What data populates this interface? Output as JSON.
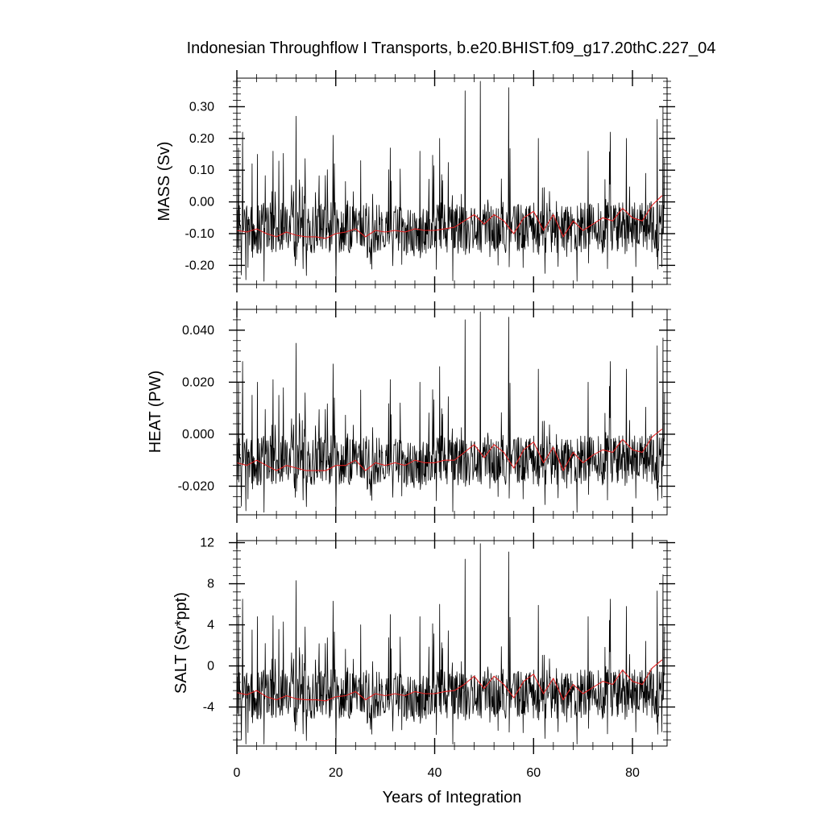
{
  "title": "Indonesian Throughflow I Transports, b.e20.BHIST.f09_g17.20thC.227_04",
  "xlabel": "Years of Integration",
  "colors": {
    "raw": "#000000",
    "smoothed": "#e02020",
    "frame": "#000000"
  },
  "chart_data": [
    {
      "type": "line",
      "ylabel": "MASS (Sv)",
      "xlim": [
        0,
        87
      ],
      "ylim": [
        -0.26,
        0.39
      ],
      "x_ticks": [],
      "y_ticks": [
        "-0.20",
        "-0.10",
        "0.00",
        "0.10",
        "0.20",
        "0.30"
      ],
      "y_tick_values": [
        -0.2,
        -0.1,
        0.0,
        0.1,
        0.2,
        0.3
      ],
      "series": [
        {
          "role": "raw",
          "base": -0.09,
          "spread": 0.08,
          "lo": -0.25,
          "hi": 0.38,
          "peaks": [
            [
              0.3,
              0.17
            ],
            [
              1.2,
              0.22
            ],
            [
              3.1,
              0.12
            ],
            [
              4.2,
              0.15
            ],
            [
              7.3,
              0.16
            ],
            [
              12.0,
              0.27
            ],
            [
              19.5,
              0.21
            ],
            [
              25.0,
              0.13
            ],
            [
              31.0,
              0.17
            ],
            [
              37.0,
              0.16
            ],
            [
              41.0,
              0.2
            ],
            [
              46.2,
              0.35
            ],
            [
              49.2,
              0.38
            ],
            [
              55.0,
              0.36
            ],
            [
              61.0,
              0.2
            ],
            [
              71.0,
              0.16
            ],
            [
              75.5,
              0.22
            ],
            [
              78.8,
              0.2
            ],
            [
              85.0,
              0.26
            ],
            [
              86.2,
              0.3
            ]
          ]
        },
        {
          "role": "smoothed",
          "x": [
            0,
            2,
            4,
            6,
            8,
            10,
            12,
            14,
            16,
            18,
            20,
            22,
            24,
            26,
            28,
            30,
            32,
            34,
            36,
            38,
            40,
            42,
            44,
            46,
            48,
            50,
            52,
            54,
            56,
            58,
            60,
            62,
            64,
            66,
            68,
            70,
            72,
            74,
            76,
            78,
            80,
            82,
            84,
            86
          ],
          "y": [
            -0.09,
            -0.095,
            -0.085,
            -0.1,
            -0.11,
            -0.095,
            -0.105,
            -0.11,
            -0.11,
            -0.115,
            -0.1,
            -0.095,
            -0.085,
            -0.11,
            -0.09,
            -0.095,
            -0.09,
            -0.095,
            -0.085,
            -0.09,
            -0.09,
            -0.085,
            -0.08,
            -0.06,
            -0.04,
            -0.07,
            -0.04,
            -0.06,
            -0.1,
            -0.05,
            -0.03,
            -0.09,
            -0.04,
            -0.11,
            -0.06,
            -0.09,
            -0.07,
            -0.05,
            -0.06,
            -0.02,
            -0.05,
            -0.06,
            -0.01,
            0.02
          ]
        }
      ]
    },
    {
      "type": "line",
      "ylabel": "HEAT (PW)",
      "xlim": [
        0,
        87
      ],
      "ylim": [
        -0.031,
        0.048
      ],
      "x_ticks": [],
      "y_ticks": [
        "-0.020",
        "0.000",
        "0.020",
        "0.040"
      ],
      "y_tick_values": [
        -0.02,
        0.0,
        0.02,
        0.04
      ],
      "series": [
        {
          "role": "raw",
          "base": -0.011,
          "spread": 0.0095,
          "lo": -0.03,
          "hi": 0.047,
          "peaks": [
            [
              0.3,
              0.02
            ],
            [
              1.2,
              0.028
            ],
            [
              3.1,
              0.015
            ],
            [
              4.2,
              0.02
            ],
            [
              7.3,
              0.021
            ],
            [
              12.0,
              0.035
            ],
            [
              19.5,
              0.027
            ],
            [
              25.0,
              0.017
            ],
            [
              31.0,
              0.021
            ],
            [
              37.0,
              0.02
            ],
            [
              41.0,
              0.026
            ],
            [
              46.2,
              0.044
            ],
            [
              49.2,
              0.047
            ],
            [
              55.0,
              0.045
            ],
            [
              61.0,
              0.025
            ],
            [
              71.0,
              0.02
            ],
            [
              75.5,
              0.028
            ],
            [
              78.8,
              0.025
            ],
            [
              85.0,
              0.034
            ],
            [
              86.2,
              0.037
            ]
          ]
        },
        {
          "role": "smoothed",
          "x": [
            0,
            2,
            4,
            6,
            8,
            10,
            12,
            14,
            16,
            18,
            20,
            22,
            24,
            26,
            28,
            30,
            32,
            34,
            36,
            38,
            40,
            42,
            44,
            46,
            48,
            50,
            52,
            54,
            56,
            58,
            60,
            62,
            64,
            66,
            68,
            70,
            72,
            74,
            76,
            78,
            80,
            82,
            84,
            86
          ],
          "y": [
            -0.011,
            -0.012,
            -0.01,
            -0.012,
            -0.014,
            -0.012,
            -0.013,
            -0.014,
            -0.014,
            -0.014,
            -0.012,
            -0.012,
            -0.01,
            -0.014,
            -0.011,
            -0.012,
            -0.011,
            -0.012,
            -0.01,
            -0.011,
            -0.011,
            -0.01,
            -0.01,
            -0.007,
            -0.004,
            -0.009,
            -0.004,
            -0.007,
            -0.013,
            -0.006,
            -0.003,
            -0.011,
            -0.005,
            -0.014,
            -0.007,
            -0.011,
            -0.008,
            -0.006,
            -0.007,
            -0.002,
            -0.006,
            -0.007,
            -0.001,
            0.002
          ]
        }
      ]
    },
    {
      "type": "line",
      "ylabel": "SALT (Sv*ppt)",
      "xlim": [
        0,
        87
      ],
      "ylim": [
        -7.8,
        12.2
      ],
      "x_ticks": [
        "0",
        "20",
        "40",
        "60",
        "80"
      ],
      "x_tick_values": [
        0,
        20,
        40,
        60,
        80
      ],
      "y_ticks": [
        "-4",
        "0",
        "4",
        "8",
        "12"
      ],
      "y_tick_values": [
        -4,
        0,
        4,
        8,
        12
      ],
      "series": [
        {
          "role": "raw",
          "base": -3.0,
          "spread": 2.4,
          "lo": -7.6,
          "hi": 12.0,
          "peaks": [
            [
              0.3,
              5.0
            ],
            [
              1.2,
              6.5
            ],
            [
              3.1,
              3.5
            ],
            [
              4.2,
              4.8
            ],
            [
              7.3,
              4.9
            ],
            [
              12.0,
              8.3
            ],
            [
              19.5,
              6.3
            ],
            [
              25.0,
              4.0
            ],
            [
              31.0,
              5.0
            ],
            [
              37.0,
              4.8
            ],
            [
              41.0,
              6.0
            ],
            [
              46.2,
              10.4
            ],
            [
              49.2,
              11.9
            ],
            [
              55.0,
              11.1
            ],
            [
              61.0,
              5.9
            ],
            [
              71.0,
              4.8
            ],
            [
              75.5,
              6.5
            ],
            [
              78.8,
              5.8
            ],
            [
              85.0,
              7.3
            ],
            [
              86.2,
              8.9
            ]
          ]
        },
        {
          "role": "smoothed",
          "x": [
            0,
            2,
            4,
            6,
            8,
            10,
            12,
            14,
            16,
            18,
            20,
            22,
            24,
            26,
            28,
            30,
            32,
            34,
            36,
            38,
            40,
            42,
            44,
            46,
            48,
            50,
            52,
            54,
            56,
            58,
            60,
            62,
            64,
            66,
            68,
            70,
            72,
            74,
            76,
            78,
            80,
            82,
            84,
            86
          ],
          "y": [
            -2.6,
            -2.8,
            -2.4,
            -3.0,
            -3.3,
            -2.9,
            -3.2,
            -3.3,
            -3.3,
            -3.4,
            -3.0,
            -2.9,
            -2.5,
            -3.3,
            -2.7,
            -2.9,
            -2.7,
            -2.9,
            -2.5,
            -2.7,
            -2.7,
            -2.5,
            -2.4,
            -1.8,
            -1.0,
            -2.2,
            -1.0,
            -1.8,
            -3.1,
            -1.5,
            -0.8,
            -2.7,
            -1.2,
            -3.3,
            -1.8,
            -2.7,
            -2.1,
            -1.5,
            -1.8,
            -0.4,
            -1.5,
            -1.8,
            -0.2,
            0.6
          ]
        }
      ]
    }
  ]
}
